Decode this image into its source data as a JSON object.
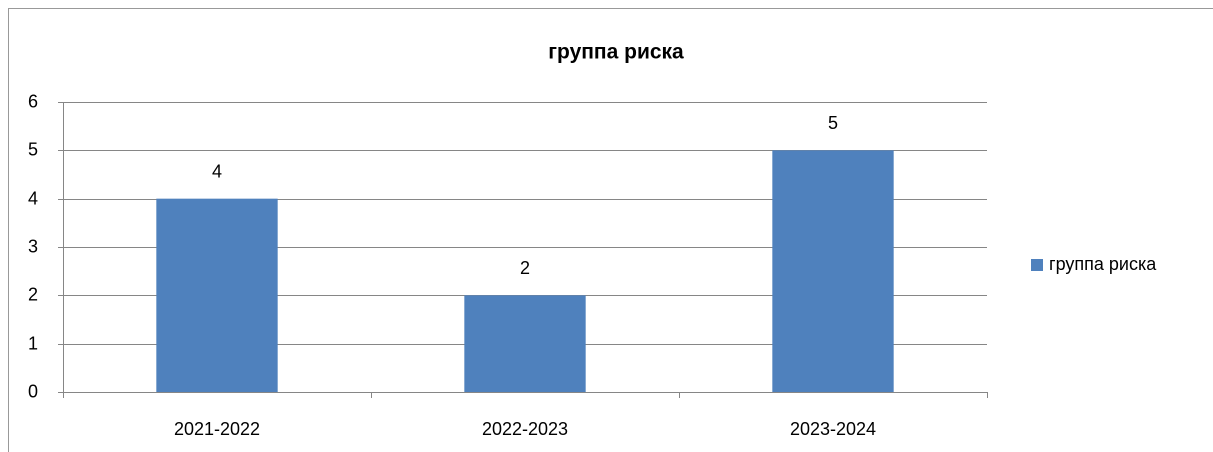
{
  "chart_data": {
    "type": "bar",
    "title": "группа риска",
    "categories": [
      "2021-2022",
      "2022-2023",
      "2023-2024"
    ],
    "series": [
      {
        "name": "группа риска",
        "color": "#4f81bd",
        "values": [
          4,
          2,
          5
        ]
      }
    ],
    "ylim": [
      0,
      6
    ],
    "yticks": [
      0,
      1,
      2,
      3,
      4,
      5,
      6
    ],
    "grid": true,
    "legend": "right",
    "data_labels": true
  }
}
